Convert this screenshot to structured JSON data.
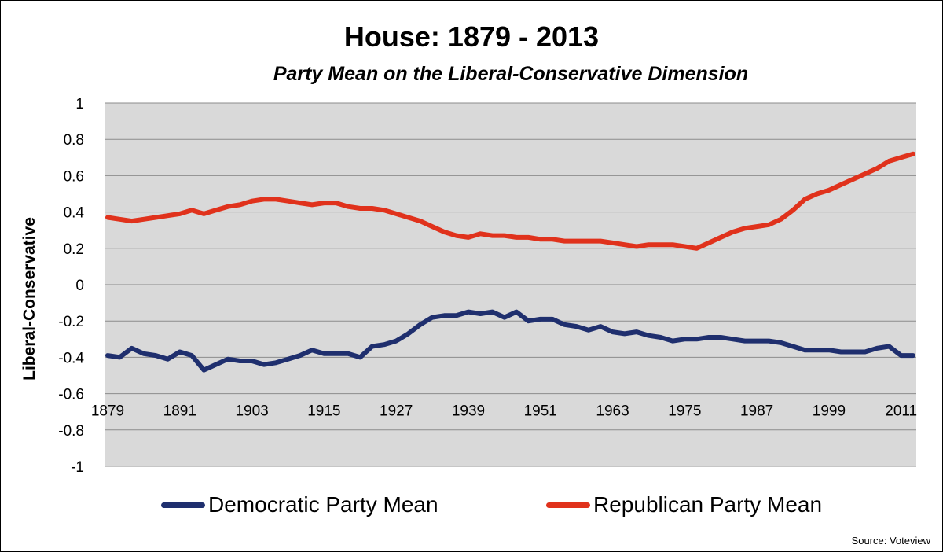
{
  "chart_data": {
    "type": "line",
    "title": "House: 1879 - 2013",
    "subtitle": "Party Mean on the Liberal-Conservative  Dimension",
    "xlabel": "",
    "ylabel": "Liberal-Conservative",
    "ylim": [
      -1,
      1
    ],
    "yticks": [
      "1",
      "0.8",
      "0.6",
      "0.4",
      "0.2",
      "0",
      "-0.2",
      "-0.4",
      "-0.6",
      "-0.8",
      "-1"
    ],
    "xticks": [
      "1879",
      "1891",
      "1903",
      "1915",
      "1927",
      "1939",
      "1951",
      "1963",
      "1975",
      "1987",
      "1999",
      "2011"
    ],
    "xlim": [
      1879,
      2013
    ],
    "grid": true,
    "legend_position": "bottom",
    "x": [
      1879,
      1881,
      1883,
      1885,
      1887,
      1889,
      1891,
      1893,
      1895,
      1897,
      1899,
      1901,
      1903,
      1905,
      1907,
      1909,
      1911,
      1913,
      1915,
      1917,
      1919,
      1921,
      1923,
      1925,
      1927,
      1929,
      1931,
      1933,
      1935,
      1937,
      1939,
      1941,
      1943,
      1945,
      1947,
      1949,
      1951,
      1953,
      1955,
      1957,
      1959,
      1961,
      1963,
      1965,
      1967,
      1969,
      1971,
      1973,
      1975,
      1977,
      1979,
      1981,
      1983,
      1985,
      1987,
      1989,
      1991,
      1993,
      1995,
      1997,
      1999,
      2001,
      2003,
      2005,
      2007,
      2009,
      2011,
      2013
    ],
    "series": [
      {
        "name": "Democratic Party Mean",
        "color": "#1f2f6e",
        "values": [
          -0.39,
          -0.4,
          -0.35,
          -0.38,
          -0.39,
          -0.41,
          -0.37,
          -0.39,
          -0.47,
          -0.44,
          -0.41,
          -0.42,
          -0.42,
          -0.44,
          -0.43,
          -0.41,
          -0.39,
          -0.36,
          -0.38,
          -0.38,
          -0.38,
          -0.4,
          -0.34,
          -0.33,
          -0.31,
          -0.27,
          -0.22,
          -0.18,
          -0.17,
          -0.17,
          -0.15,
          -0.16,
          -0.15,
          -0.18,
          -0.15,
          -0.2,
          -0.19,
          -0.19,
          -0.22,
          -0.23,
          -0.25,
          -0.23,
          -0.26,
          -0.27,
          -0.26,
          -0.28,
          -0.29,
          -0.31,
          -0.3,
          -0.3,
          -0.29,
          -0.29,
          -0.3,
          -0.31,
          -0.31,
          -0.31,
          -0.32,
          -0.34,
          -0.36,
          -0.36,
          -0.36,
          -0.37,
          -0.37,
          -0.37,
          -0.35,
          -0.34,
          -0.39,
          -0.39
        ]
      },
      {
        "name": "Republican Party Mean",
        "color": "#e0321c",
        "values": [
          0.37,
          0.36,
          0.35,
          0.36,
          0.37,
          0.38,
          0.39,
          0.41,
          0.39,
          0.41,
          0.43,
          0.44,
          0.46,
          0.47,
          0.47,
          0.46,
          0.45,
          0.44,
          0.45,
          0.45,
          0.43,
          0.42,
          0.42,
          0.41,
          0.39,
          0.37,
          0.35,
          0.32,
          0.29,
          0.27,
          0.26,
          0.28,
          0.27,
          0.27,
          0.26,
          0.26,
          0.25,
          0.25,
          0.24,
          0.24,
          0.24,
          0.24,
          0.23,
          0.22,
          0.21,
          0.22,
          0.22,
          0.22,
          0.21,
          0.2,
          0.23,
          0.26,
          0.29,
          0.31,
          0.32,
          0.33,
          0.36,
          0.41,
          0.47,
          0.5,
          0.52,
          0.55,
          0.58,
          0.61,
          0.64,
          0.68,
          0.7,
          0.72
        ]
      }
    ]
  },
  "source": "Source: Voteview"
}
